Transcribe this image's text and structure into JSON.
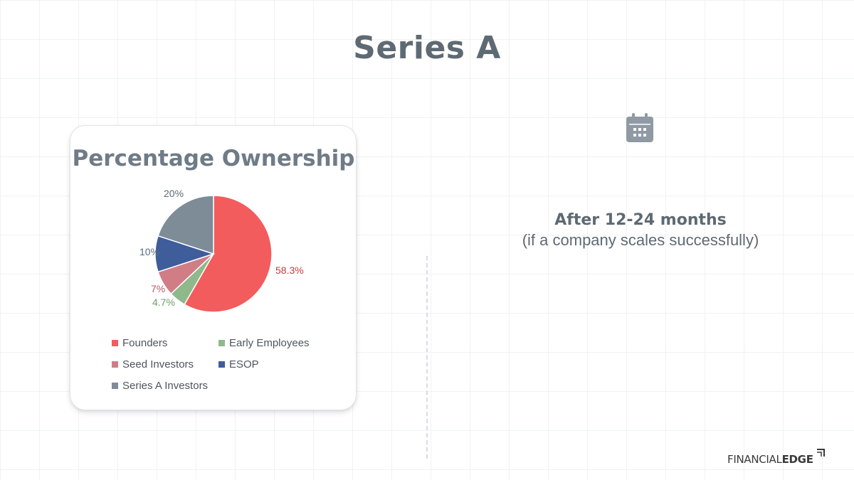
{
  "slide": {
    "title": "Series A"
  },
  "info": {
    "title": "After 12-24 months",
    "subtitle": "(if a company scales successfully)"
  },
  "logo": {
    "text_regular": "FINANCIAL",
    "text_bold": "EDGE"
  },
  "icons": {
    "calendar": "calendar-icon"
  },
  "chart_data": {
    "type": "pie",
    "title": "Percentage Ownership",
    "slices": [
      {
        "label": "Founders",
        "value": 58.3,
        "display": "58.3%",
        "color": "#f25c5c",
        "label_color": "#c43c3c"
      },
      {
        "label": "Early Employees",
        "value": 4.7,
        "display": "4.7%",
        "color": "#8fb98a",
        "label_color": "#6f9c6a"
      },
      {
        "label": "Seed Investors",
        "value": 7,
        "display": "7%",
        "color": "#d07d86",
        "label_color": "#b55a64"
      },
      {
        "label": "ESOP",
        "value": 10,
        "display": "10%",
        "color": "#3f5d9b",
        "label_color": "#5a6a80"
      },
      {
        "label": "Series A Investors",
        "value": 20,
        "display": "20%",
        "color": "#7e8c98",
        "label_color": "#5e6a73"
      }
    ],
    "legend": {
      "position": "bottom",
      "items": [
        "Founders",
        "Early Employees",
        "Seed Investors",
        "ESOP",
        "Series A Investors"
      ]
    }
  }
}
